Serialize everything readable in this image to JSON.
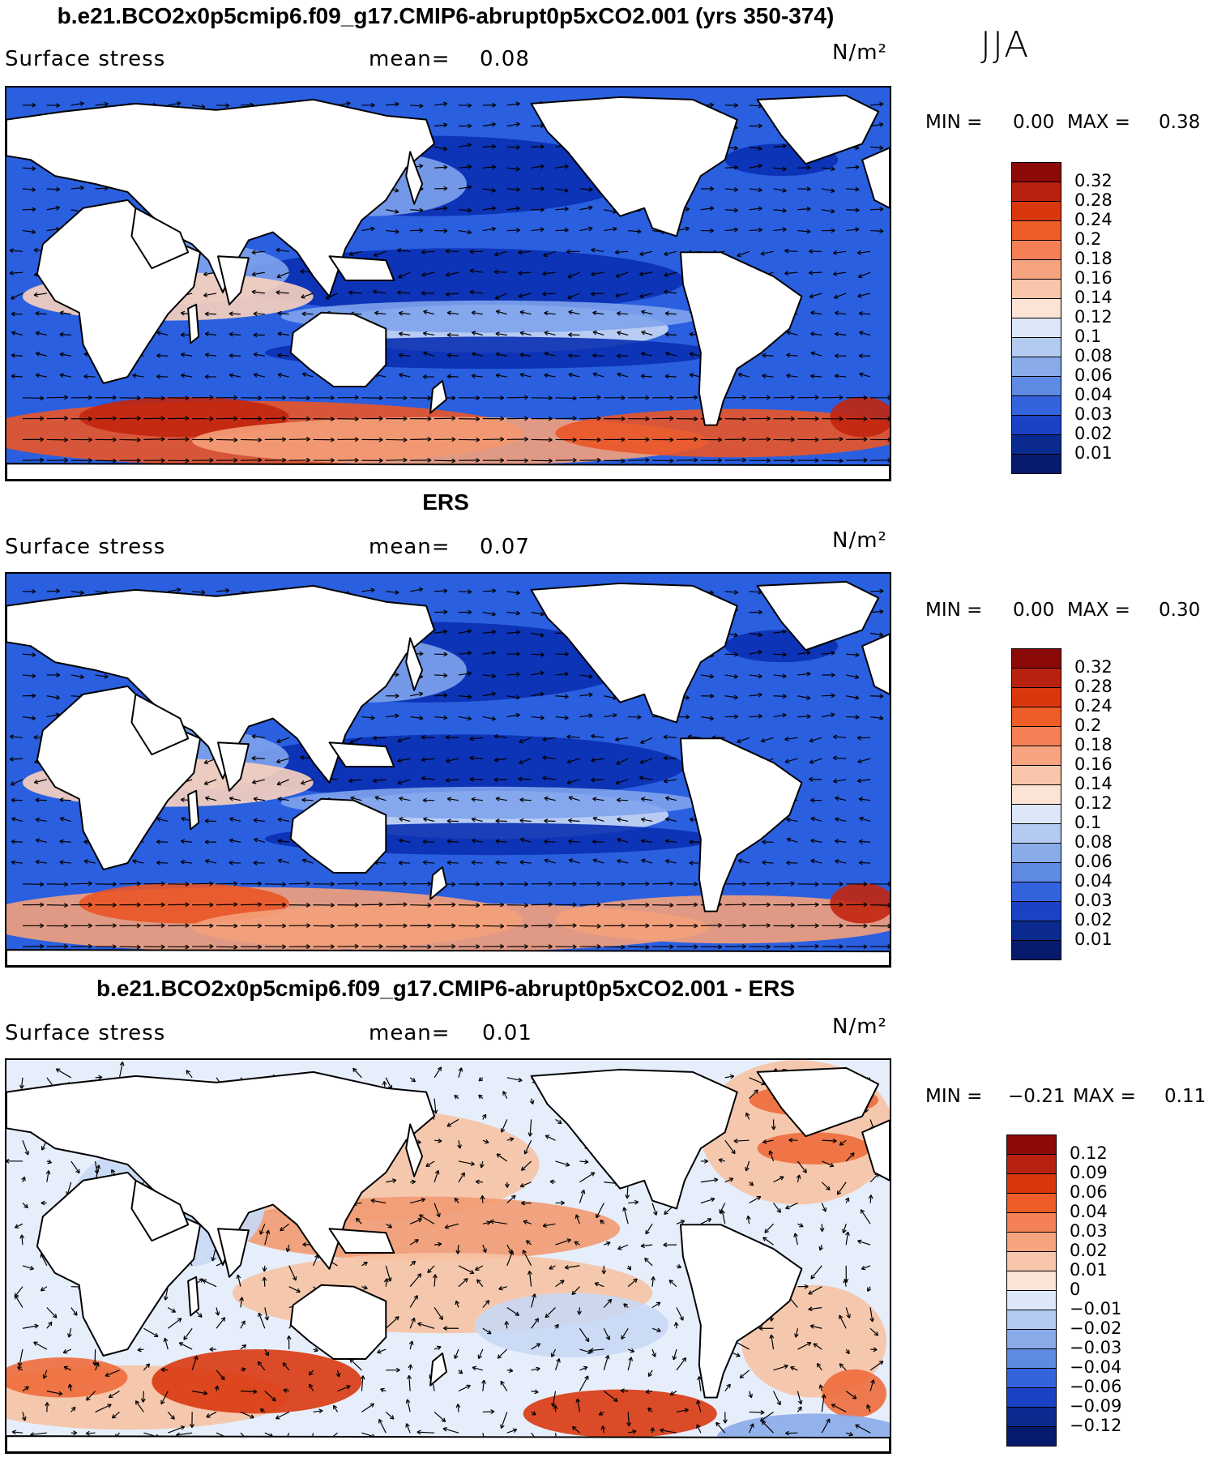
{
  "header": {
    "season": "JJA"
  },
  "panels": [
    {
      "title": "b.e21.BCO2x0p5cmip6.f09_g17.CMIP6-abrupt0p5xCO2.001 (yrs 350-374)",
      "field": "Surface stress",
      "mean_label": "mean=",
      "mean_value": "0.08",
      "units": "N/m²",
      "min_label": "MIN =",
      "min_value": "0.00",
      "max_label": "MAX =",
      "max_value": "0.38",
      "kind": "abs",
      "colorbar_labels": [
        "0.32",
        "0.28",
        "0.24",
        "0.2",
        "0.18",
        "0.16",
        "0.14",
        "0.12",
        "0.1",
        "0.08",
        "0.06",
        "0.04",
        "0.03",
        "0.02",
        "0.01"
      ],
      "colorbar_colors": [
        "#8b0a08",
        "#b8210f",
        "#d9380f",
        "#ee5d27",
        "#f48155",
        "#f6a47f",
        "#f8c6ab",
        "#fbe4d6",
        "#dce7f8",
        "#b4cbf1",
        "#8aabea",
        "#5e8ae4",
        "#3463de",
        "#1b42c4",
        "#0a2a8f",
        "#071a6b"
      ]
    },
    {
      "title": "ERS",
      "field": "Surface stress",
      "mean_label": "mean=",
      "mean_value": "0.07",
      "units": "N/m²",
      "min_label": "MIN =",
      "min_value": "0.00",
      "max_label": "MAX =",
      "max_value": "0.30",
      "kind": "abs",
      "colorbar_labels": [
        "0.32",
        "0.28",
        "0.24",
        "0.2",
        "0.18",
        "0.16",
        "0.14",
        "0.12",
        "0.1",
        "0.08",
        "0.06",
        "0.04",
        "0.03",
        "0.02",
        "0.01"
      ],
      "colorbar_colors": [
        "#8b0a08",
        "#b8210f",
        "#d9380f",
        "#ee5d27",
        "#f48155",
        "#f6a47f",
        "#f8c6ab",
        "#fbe4d6",
        "#dce7f8",
        "#b4cbf1",
        "#8aabea",
        "#5e8ae4",
        "#3463de",
        "#1b42c4",
        "#0a2a8f",
        "#071a6b"
      ]
    },
    {
      "title": "b.e21.BCO2x0p5cmip6.f09_g17.CMIP6-abrupt0p5xCO2.001 - ERS",
      "field": "Surface stress",
      "mean_label": "mean=",
      "mean_value": "0.01",
      "units": "N/m²",
      "min_label": "MIN =",
      "min_value": "−0.21",
      "max_label": "MAX =",
      "max_value": "0.11",
      "kind": "diff",
      "colorbar_labels": [
        "0.12",
        "0.09",
        "0.06",
        "0.04",
        "0.03",
        "0.02",
        "0.01",
        "0",
        "−0.01",
        "−0.02",
        "−0.03",
        "−0.04",
        "−0.06",
        "−0.09",
        "−0.12"
      ],
      "colorbar_colors": [
        "#8b0a08",
        "#b8210f",
        "#d9380f",
        "#ee5d27",
        "#f48155",
        "#f6a47f",
        "#f8c6ab",
        "#fbe4d6",
        "#dce7f8",
        "#b4cbf1",
        "#8aabea",
        "#5e8ae4",
        "#3463de",
        "#1b42c4",
        "#0a2a8f",
        "#071a6b"
      ]
    }
  ]
}
